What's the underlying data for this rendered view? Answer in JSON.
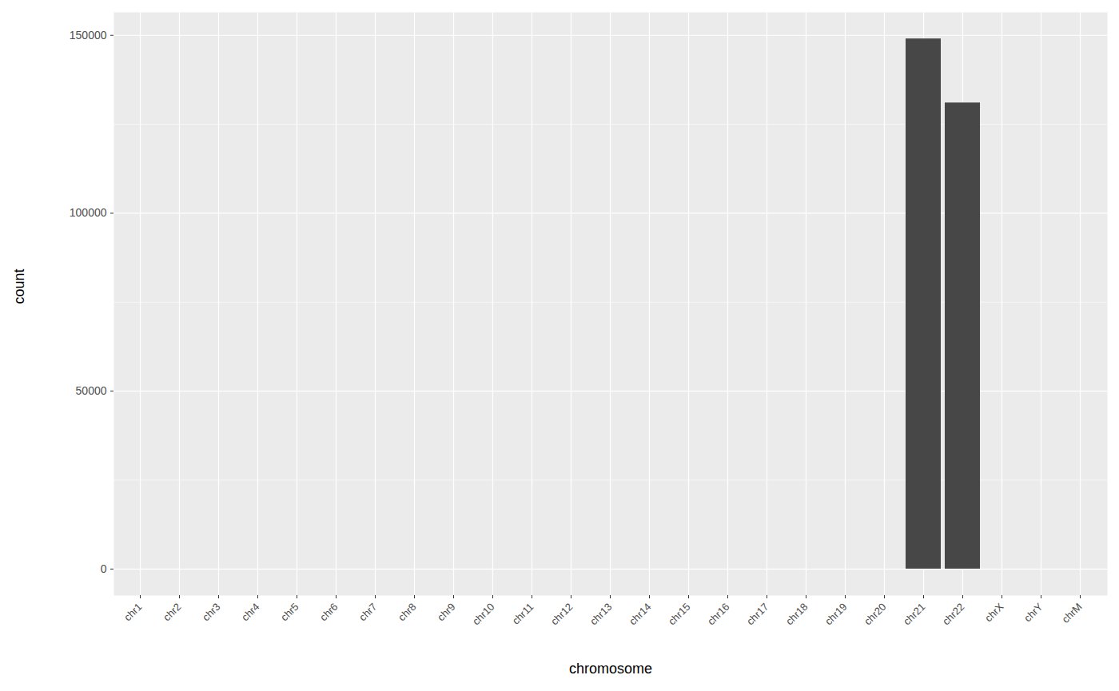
{
  "chart_data": {
    "type": "bar",
    "x_label": "chromosome",
    "y_label": "count",
    "categories": [
      "chr1",
      "chr2",
      "chr3",
      "chr4",
      "chr5",
      "chr6",
      "chr7",
      "chr8",
      "chr9",
      "chr10",
      "chr11",
      "chr12",
      "chr13",
      "chr14",
      "chr15",
      "chr16",
      "chr17",
      "chr18",
      "chr19",
      "chr20",
      "chr21",
      "chr22",
      "chrX",
      "chrY",
      "chrM"
    ],
    "values": [
      0,
      0,
      0,
      0,
      0,
      0,
      0,
      0,
      0,
      0,
      0,
      0,
      0,
      0,
      0,
      0,
      0,
      0,
      0,
      0,
      149000,
      131000,
      0,
      0,
      0
    ],
    "color": "#474747",
    "ylim": [
      -7450,
      156450
    ],
    "yticks": [
      0,
      50000,
      100000,
      150000
    ],
    "grid": true
  }
}
